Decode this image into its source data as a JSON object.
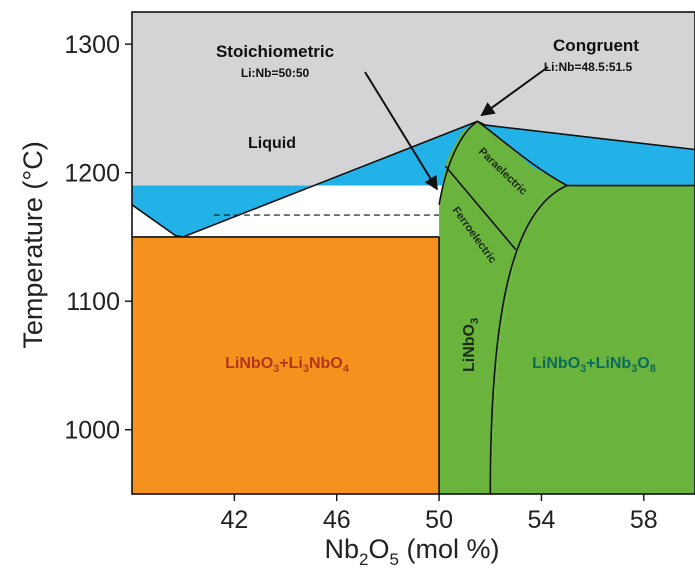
{
  "chart_data": {
    "type": "phase-diagram",
    "xlabel": {
      "main": "Nb",
      "sub1": "2",
      "mid": "O",
      "sub2": "5",
      "tail": " (mol %)"
    },
    "ylabel": "Temperature (°C)",
    "xlim": [
      38,
      60
    ],
    "ylim": [
      950,
      1325
    ],
    "xticks": [
      "42",
      "46",
      "50",
      "54",
      "58"
    ],
    "xtick_values": [
      42,
      46,
      50,
      54,
      58
    ],
    "yticks": [
      "1300",
      "1200",
      "1100",
      "1000"
    ],
    "ytick_values": [
      1300,
      1200,
      1100,
      1000
    ],
    "colors": {
      "liquid": "#d4d4d6",
      "two_phase_liquid": "#22b2e8",
      "li3nbo4_region": "#f4921d",
      "linbo3_region": "#6ab43e",
      "linb3o8_region": "#6ab43e",
      "lines": "#111111"
    },
    "annotations": {
      "stoichiometric": {
        "title": "Stoichiometric",
        "ratio": "Li:Nb=50:50",
        "point": [
          50,
          1170
        ]
      },
      "congruent": {
        "title": "Congruent",
        "ratio": "Li:Nb=48.5:51.5",
        "point": [
          51.5,
          1240
        ]
      }
    },
    "labels": {
      "liquid": "Liquid",
      "paraelectric": "Paraelectric",
      "ferroelectric": "Ferroelectric",
      "linbo3": {
        "a": "LiNbO",
        "b": "3"
      },
      "left_region": {
        "a": "LiNbO",
        "b": "3",
        "c": "+Li",
        "d": "3",
        "e": "NbO",
        "f": "4"
      },
      "right_region": {
        "a": "LiNbO",
        "b": "3",
        "c": "+LiNb",
        "d": "3",
        "e": "O",
        "f": "8"
      }
    },
    "eutectic_temp": 1150,
    "congruent_point": [
      51.5,
      1240
    ],
    "eutectic_left": [
      40.0,
      1150
    ],
    "right_eutectic_temp": 1190
  }
}
